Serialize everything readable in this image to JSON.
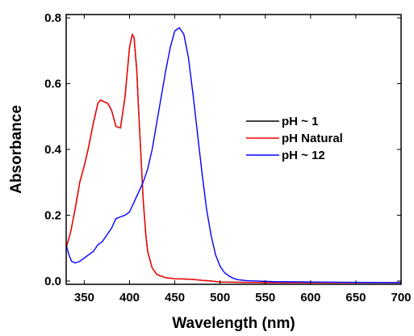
{
  "chart_data": {
    "type": "line",
    "xlabel": "Wavelength (nm)",
    "ylabel": "Absorbance",
    "xlim": [
      330,
      700
    ],
    "ylim": [
      -0.01,
      0.81
    ],
    "x_ticks": [
      350,
      400,
      450,
      500,
      550,
      600,
      650,
      700
    ],
    "x_tick_labels": [
      "350",
      "400",
      "450",
      "500",
      "550",
      "600",
      "650",
      "700"
    ],
    "y_ticks": [
      0.0,
      0.2,
      0.4,
      0.6,
      0.8
    ],
    "y_tick_labels": [
      "0.0",
      "0.2",
      "0.4",
      "0.6",
      "0.8"
    ],
    "grid": false,
    "legend_position": "right-middle",
    "series": [
      {
        "name": "pH ~ 1",
        "color": "#000000",
        "x": [
          330,
          335,
          340,
          345,
          350,
          355,
          360,
          365,
          368,
          372,
          376,
          380,
          385,
          390,
          395,
          400,
          403,
          405,
          408,
          410,
          413,
          415,
          418,
          420,
          425,
          430,
          440,
          450,
          460,
          470,
          480,
          490,
          500,
          550,
          600,
          650,
          700
        ],
        "y": [
          0.1,
          0.15,
          0.22,
          0.3,
          0.35,
          0.41,
          0.48,
          0.54,
          0.55,
          0.545,
          0.54,
          0.52,
          0.47,
          0.465,
          0.56,
          0.71,
          0.75,
          0.74,
          0.64,
          0.52,
          0.36,
          0.25,
          0.14,
          0.09,
          0.04,
          0.02,
          0.01,
          0.007,
          0.006,
          0.005,
          0.002,
          0.0,
          -0.003,
          -0.005,
          -0.005,
          -0.005,
          -0.005
        ]
      },
      {
        "name": "pH Natural",
        "color": "#ff0000",
        "x": [
          330,
          335,
          340,
          345,
          350,
          355,
          360,
          365,
          368,
          372,
          376,
          380,
          385,
          390,
          395,
          400,
          403,
          405,
          408,
          410,
          413,
          415,
          418,
          420,
          425,
          430,
          440,
          450,
          460,
          470,
          480,
          490,
          500,
          550,
          600,
          650,
          700
        ],
        "y": [
          0.1,
          0.15,
          0.22,
          0.3,
          0.35,
          0.41,
          0.48,
          0.54,
          0.55,
          0.545,
          0.54,
          0.52,
          0.47,
          0.465,
          0.56,
          0.71,
          0.75,
          0.74,
          0.64,
          0.52,
          0.36,
          0.25,
          0.14,
          0.09,
          0.04,
          0.02,
          0.01,
          0.007,
          0.006,
          0.005,
          0.002,
          0.0,
          -0.003,
          -0.005,
          -0.005,
          -0.005,
          -0.005
        ]
      },
      {
        "name": "pH ~ 12",
        "color": "#0000ff",
        "x": [
          330,
          333,
          336,
          340,
          345,
          350,
          355,
          360,
          365,
          370,
          375,
          380,
          385,
          390,
          395,
          400,
          405,
          410,
          415,
          420,
          425,
          430,
          435,
          440,
          445,
          450,
          455,
          460,
          465,
          470,
          475,
          480,
          485,
          490,
          495,
          500,
          505,
          510,
          515,
          520,
          530,
          540,
          560,
          600,
          650,
          700
        ],
        "y": [
          0.11,
          0.08,
          0.06,
          0.055,
          0.06,
          0.07,
          0.08,
          0.09,
          0.11,
          0.12,
          0.14,
          0.16,
          0.19,
          0.195,
          0.2,
          0.21,
          0.24,
          0.27,
          0.3,
          0.34,
          0.4,
          0.48,
          0.56,
          0.64,
          0.71,
          0.76,
          0.77,
          0.75,
          0.68,
          0.57,
          0.45,
          0.33,
          0.22,
          0.14,
          0.08,
          0.045,
          0.025,
          0.015,
          0.008,
          0.004,
          0.001,
          0.0,
          -0.002,
          -0.003,
          -0.004,
          -0.005
        ]
      }
    ]
  }
}
